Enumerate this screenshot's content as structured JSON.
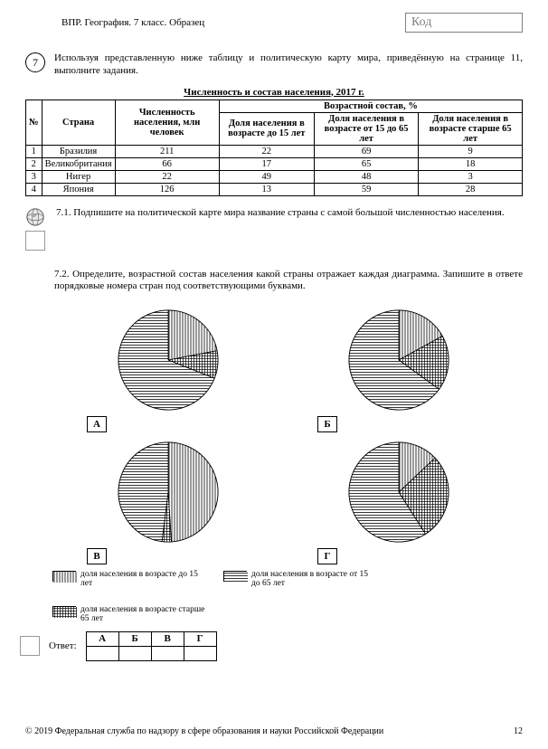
{
  "header": {
    "left": "ВПР. География. 7 класс. Образец",
    "code_label": "Код"
  },
  "question": {
    "number": "7",
    "intro": "Используя представленную ниже таблицу и политическую карту мира, приведённую на странице 11, выполните задания."
  },
  "table": {
    "title": "Численность и состав населения, 2017 г.",
    "col_num": "№",
    "col_country": "Страна",
    "col_pop": "Численность населения, млн человек",
    "col_age_group": "Возрастной состав, %",
    "col_u15": "Доля населения в возрасте до 15 лет",
    "col_15_65": "Доля населения в возрасте от 15 до 65 лет",
    "col_o65": "Доля населения в возрасте старше 65 лет",
    "rows": [
      {
        "n": "1",
        "country": "Бразилия",
        "pop": "211",
        "u15": "22",
        "mid": "69",
        "o65": "9"
      },
      {
        "n": "2",
        "country": "Великобритания",
        "pop": "66",
        "u15": "17",
        "mid": "65",
        "o65": "18"
      },
      {
        "n": "3",
        "country": "Нигер",
        "pop": "22",
        "u15": "49",
        "mid": "48",
        "o65": "3"
      },
      {
        "n": "4",
        "country": "Япония",
        "pop": "126",
        "u15": "13",
        "mid": "59",
        "o65": "28"
      }
    ]
  },
  "task71": "7.1.  Подпишите на политической карте мира название страны с самой большой численностью населения.",
  "task72": "7.2. Определите, возрастной состав населения какой страны отражает каждая диаграмма. Запишите в ответе порядковые номера стран под соответствующими буквами.",
  "charts": {
    "labels": {
      "a": "А",
      "b": "Б",
      "v": "В",
      "g": "Г"
    },
    "pies": {
      "A": {
        "u15": 22,
        "mid": 69,
        "o65": 9
      },
      "B": {
        "u15": 17,
        "mid": 65,
        "o65": 18
      },
      "V": {
        "u15": 49,
        "mid": 48,
        "o65": 3
      },
      "G": {
        "u15": 13,
        "mid": 59,
        "o65": 28
      }
    },
    "radius": 55,
    "stroke": "#000000",
    "patterns": {
      "u15": "vertical-lines",
      "mid": "horizontal-lines",
      "o65": "crosshatch"
    }
  },
  "legend": {
    "u15": "доля населения в возрасте до 15 лет",
    "mid": "доля населения в возрасте от 15 до 65 лет",
    "o65": "доля населения в возрасте старше 65 лет"
  },
  "answer": {
    "label": "Ответ:",
    "cols": [
      "А",
      "Б",
      "В",
      "Г"
    ]
  },
  "footer": {
    "copyright": "© 2019 Федеральная служба по надзору в сфере образования и науки Российской Федерации",
    "page": "12"
  }
}
